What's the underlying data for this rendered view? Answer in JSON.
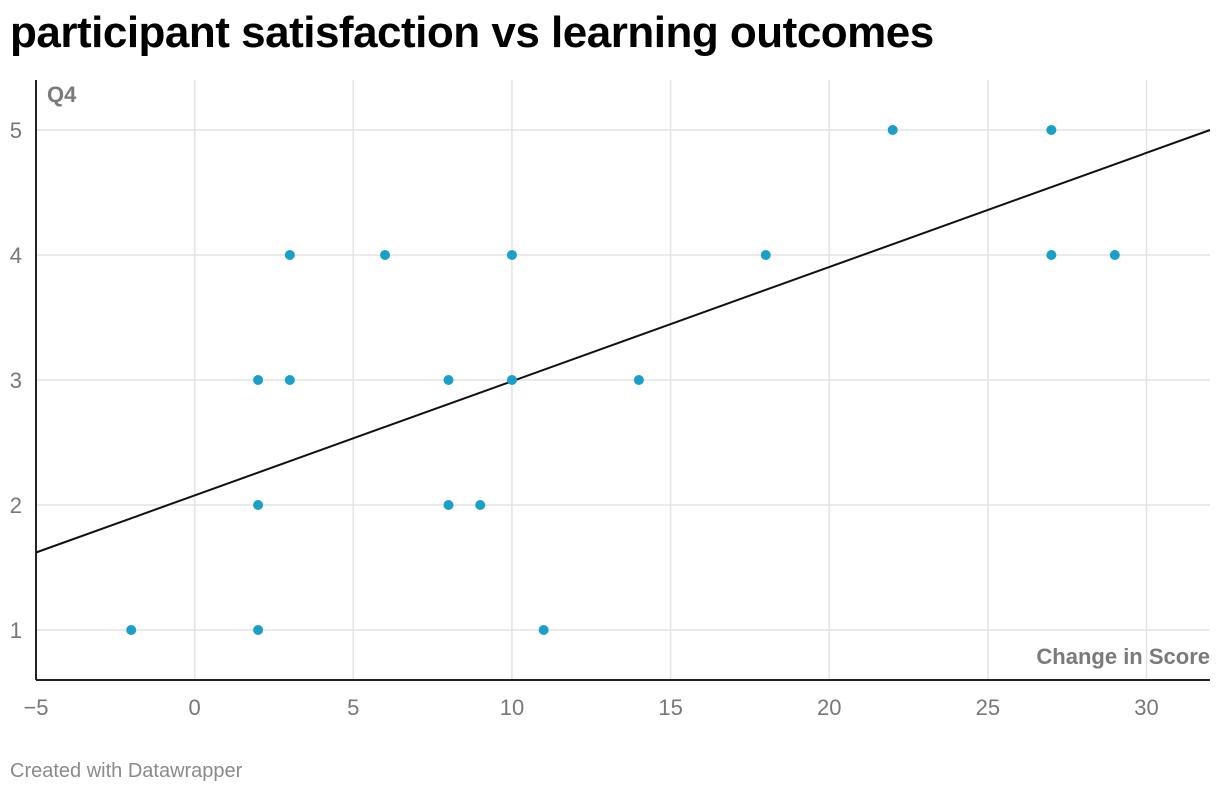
{
  "header": {
    "title": "participant satisfaction vs learning outcomes"
  },
  "footer": {
    "credit": "Created with Datawrapper"
  },
  "chart_data": {
    "type": "scatter",
    "title": "participant satisfaction vs learning outcomes",
    "xlabel": "Change in Score",
    "ylabel": "Q4",
    "xlim": [
      -5,
      32
    ],
    "ylim": [
      0.6,
      5.4
    ],
    "xticks": [
      -5,
      0,
      5,
      10,
      15,
      20,
      25,
      30
    ],
    "xtick_labels": [
      "−5",
      "0",
      "5",
      "10",
      "15",
      "20",
      "25",
      "30"
    ],
    "yticks": [
      1,
      2,
      3,
      4,
      5
    ],
    "ytick_labels": [
      "1",
      "2",
      "3",
      "4",
      "5"
    ],
    "grid": true,
    "point_color": "#1a9fc9",
    "trendline_color": "#111111",
    "points": [
      {
        "x": -2,
        "y": 1
      },
      {
        "x": 2,
        "y": 1
      },
      {
        "x": 11,
        "y": 1
      },
      {
        "x": 2,
        "y": 2
      },
      {
        "x": 8,
        "y": 2
      },
      {
        "x": 9,
        "y": 2
      },
      {
        "x": 2,
        "y": 3
      },
      {
        "x": 3,
        "y": 3
      },
      {
        "x": 8,
        "y": 3
      },
      {
        "x": 10,
        "y": 3
      },
      {
        "x": 14,
        "y": 3
      },
      {
        "x": 3,
        "y": 4
      },
      {
        "x": 6,
        "y": 4
      },
      {
        "x": 10,
        "y": 4
      },
      {
        "x": 18,
        "y": 4
      },
      {
        "x": 27,
        "y": 4
      },
      {
        "x": 29,
        "y": 4
      },
      {
        "x": 22,
        "y": 5
      },
      {
        "x": 27,
        "y": 5
      }
    ],
    "trendline": {
      "x": [
        -5,
        32
      ],
      "y": [
        1.62,
        5.0
      ]
    }
  }
}
